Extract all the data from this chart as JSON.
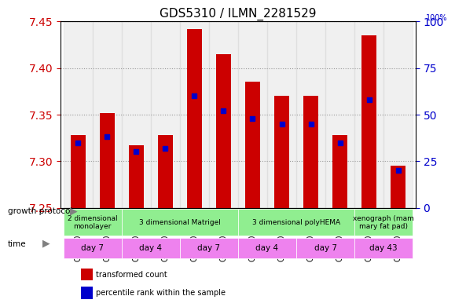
{
  "title": "GDS5310 / ILMN_2281529",
  "samples": [
    "GSM1044262",
    "GSM1044268",
    "GSM1044263",
    "GSM1044269",
    "GSM1044264",
    "GSM1044270",
    "GSM1044265",
    "GSM1044271",
    "GSM1044266",
    "GSM1044272",
    "GSM1044267",
    "GSM1044273"
  ],
  "transformed_count": [
    7.328,
    7.352,
    7.317,
    7.328,
    7.442,
    7.415,
    7.385,
    7.37,
    7.37,
    7.328,
    7.435,
    7.295
  ],
  "percentile_rank": [
    35,
    38,
    30,
    32,
    60,
    52,
    48,
    45,
    45,
    35,
    58,
    20
  ],
  "ymin": 7.25,
  "ymax": 7.45,
  "yticks": [
    7.25,
    7.3,
    7.35,
    7.4,
    7.45
  ],
  "right_yticks": [
    0,
    25,
    50,
    75,
    100
  ],
  "growth_protocol_groups": [
    {
      "label": "2 dimensional\nmonolayer",
      "start": 0,
      "end": 2,
      "color": "#90EE90"
    },
    {
      "label": "3 dimensional Matrigel",
      "start": 2,
      "end": 6,
      "color": "#90EE90"
    },
    {
      "label": "3 dimensional polyHEMA",
      "start": 6,
      "end": 10,
      "color": "#90EE90"
    },
    {
      "label": "xenograph (mam\nmary fat pad)",
      "start": 10,
      "end": 12,
      "color": "#90EE90"
    }
  ],
  "time_groups": [
    {
      "label": "day 7",
      "start": 0,
      "end": 2,
      "color": "#EE82EE"
    },
    {
      "label": "day 4",
      "start": 2,
      "end": 4,
      "color": "#EE82EE"
    },
    {
      "label": "day 7",
      "start": 4,
      "end": 6,
      "color": "#EE82EE"
    },
    {
      "label": "day 4",
      "start": 6,
      "end": 8,
      "color": "#EE82EE"
    },
    {
      "label": "day 7",
      "start": 8,
      "end": 10,
      "color": "#EE82EE"
    },
    {
      "label": "day 43",
      "start": 10,
      "end": 12,
      "color": "#EE82EE"
    }
  ],
  "bar_color": "#CC0000",
  "blue_marker_color": "#0000CC",
  "bar_width": 0.5,
  "grid_color": "#999999",
  "bg_color": "#ffffff",
  "sample_bg_color": "#d0d0d0",
  "left_tick_color": "#CC0000",
  "right_tick_color": "#0000CC",
  "legend_items": [
    {
      "label": "transformed count",
      "color": "#CC0000"
    },
    {
      "label": "percentile rank within the sample",
      "color": "#0000CC"
    }
  ]
}
